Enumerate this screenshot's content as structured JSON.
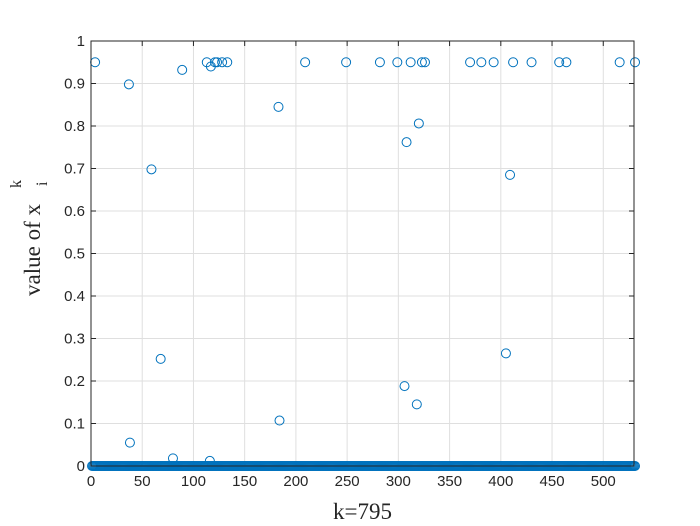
{
  "chart_data": {
    "type": "scatter",
    "title": "",
    "xlabel": "k=795",
    "ylabel": {
      "main": "value of x",
      "superscript": "k",
      "subscript": "i"
    },
    "xlim": [
      0,
      530
    ],
    "ylim": [
      0,
      1
    ],
    "xticks": [
      0,
      50,
      100,
      150,
      200,
      250,
      300,
      350,
      400,
      450,
      500
    ],
    "yticks": [
      0,
      0.1,
      0.2,
      0.3,
      0.4,
      0.5,
      0.6,
      0.7,
      0.8,
      0.9,
      1
    ],
    "xtick_labels": [
      "0",
      "50",
      "100",
      "150",
      "200",
      "250",
      "300",
      "350",
      "400",
      "450",
      "500"
    ],
    "ytick_labels": [
      "0",
      "0.1",
      "0.2",
      "0.3",
      "0.4",
      "0.5",
      "0.6",
      "0.7",
      "0.8",
      "0.9",
      "1"
    ],
    "grid": true,
    "marker": "open-circle",
    "marker_color": "#0072BD",
    "series": [
      {
        "points": [
          [
            4,
            0.95
          ],
          [
            37,
            0.898
          ],
          [
            38,
            0.055
          ],
          [
            59,
            0.698
          ],
          [
            68,
            0.252
          ],
          [
            80,
            0.018
          ],
          [
            89,
            0.932
          ],
          [
            113,
            0.95
          ],
          [
            116,
            0.012
          ],
          [
            117,
            0.94
          ],
          [
            121,
            0.95
          ],
          [
            123,
            0.95
          ],
          [
            128,
            0.95
          ],
          [
            133,
            0.95
          ],
          [
            183,
            0.845
          ],
          [
            184,
            0.107
          ],
          [
            209,
            0.95
          ],
          [
            249,
            0.95
          ],
          [
            282,
            0.95
          ],
          [
            299,
            0.95
          ],
          [
            306,
            0.188
          ],
          [
            308,
            0.762
          ],
          [
            312,
            0.95
          ],
          [
            318,
            0.145
          ],
          [
            320,
            0.806
          ],
          [
            323,
            0.95
          ],
          [
            326,
            0.95
          ],
          [
            370,
            0.95
          ],
          [
            381,
            0.95
          ],
          [
            393,
            0.95
          ],
          [
            405,
            0.265
          ],
          [
            409,
            0.685
          ],
          [
            412,
            0.95
          ],
          [
            430,
            0.95
          ],
          [
            457,
            0.95
          ],
          [
            464,
            0.95
          ],
          [
            516,
            0.95
          ],
          [
            531,
            0.95
          ]
        ]
      },
      {
        "x_range": [
          1,
          531
        ],
        "y": 0
      }
    ]
  }
}
